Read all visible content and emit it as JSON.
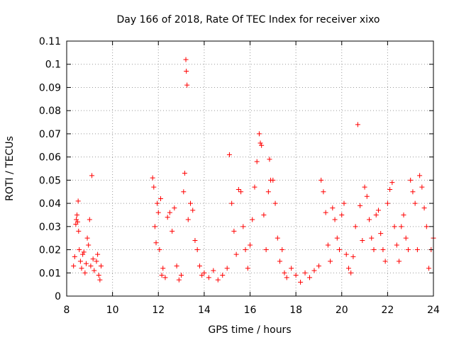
{
  "chart_data": {
    "type": "scatter",
    "title": "Day 166 of 2018, Rate Of TEC Index for receiver xixo",
    "xlabel": "GPS time / hours",
    "ylabel": "ROTI / TECUs",
    "xlim": [
      8,
      24
    ],
    "ylim": [
      0,
      0.11
    ],
    "xticks": [
      "8",
      "10",
      "12",
      "14",
      "16",
      "18",
      "20",
      "22",
      "24"
    ],
    "yticks": [
      "0",
      "0.01",
      "0.02",
      "0.03",
      "0.04",
      "0.05",
      "0.06",
      "0.07",
      "0.08",
      "0.09",
      "0.1",
      "0.11"
    ],
    "grid": "dotted",
    "marker": "+",
    "series": [
      {
        "name": "ROTI",
        "color": "#ff0000",
        "points": [
          [
            8.3,
            0.013
          ],
          [
            8.35,
            0.017
          ],
          [
            8.4,
            0.031
          ],
          [
            8.42,
            0.033
          ],
          [
            8.45,
            0.035
          ],
          [
            8.48,
            0.032
          ],
          [
            8.5,
            0.041
          ],
          [
            8.52,
            0.028
          ],
          [
            8.55,
            0.02
          ],
          [
            8.6,
            0.015
          ],
          [
            8.65,
            0.012
          ],
          [
            8.7,
            0.018
          ],
          [
            8.75,
            0.019
          ],
          [
            8.8,
            0.01
          ],
          [
            8.85,
            0.014
          ],
          [
            8.9,
            0.025
          ],
          [
            8.95,
            0.022
          ],
          [
            9.0,
            0.033
          ],
          [
            9.05,
            0.013
          ],
          [
            9.1,
            0.052
          ],
          [
            9.15,
            0.016
          ],
          [
            9.2,
            0.011
          ],
          [
            9.3,
            0.015
          ],
          [
            9.35,
            0.018
          ],
          [
            9.4,
            0.009
          ],
          [
            9.45,
            0.007
          ],
          [
            9.5,
            0.013
          ],
          [
            11.75,
            0.051
          ],
          [
            11.8,
            0.047
          ],
          [
            11.85,
            0.03
          ],
          [
            11.9,
            0.023
          ],
          [
            11.95,
            0.04
          ],
          [
            12.0,
            0.036
          ],
          [
            12.05,
            0.02
          ],
          [
            12.1,
            0.042
          ],
          [
            12.15,
            0.009
          ],
          [
            12.2,
            0.012
          ],
          [
            12.3,
            0.008
          ],
          [
            12.4,
            0.034
          ],
          [
            12.5,
            0.036
          ],
          [
            12.6,
            0.028
          ],
          [
            12.7,
            0.038
          ],
          [
            12.8,
            0.013
          ],
          [
            12.9,
            0.007
          ],
          [
            13.0,
            0.009
          ],
          [
            13.1,
            0.045
          ],
          [
            13.15,
            0.053
          ],
          [
            13.2,
            0.102
          ],
          [
            13.22,
            0.097
          ],
          [
            13.25,
            0.091
          ],
          [
            13.3,
            0.033
          ],
          [
            13.4,
            0.04
          ],
          [
            13.5,
            0.037
          ],
          [
            13.6,
            0.024
          ],
          [
            13.7,
            0.02
          ],
          [
            13.8,
            0.013
          ],
          [
            13.9,
            0.009
          ],
          [
            14.0,
            0.01
          ],
          [
            14.2,
            0.008
          ],
          [
            14.4,
            0.011
          ],
          [
            14.6,
            0.007
          ],
          [
            14.8,
            0.009
          ],
          [
            15.0,
            0.012
          ],
          [
            15.1,
            0.061
          ],
          [
            15.2,
            0.04
          ],
          [
            15.3,
            0.028
          ],
          [
            15.4,
            0.018
          ],
          [
            15.5,
            0.046
          ],
          [
            15.6,
            0.045
          ],
          [
            15.7,
            0.03
          ],
          [
            15.8,
            0.02
          ],
          [
            15.9,
            0.012
          ],
          [
            16.0,
            0.022
          ],
          [
            16.1,
            0.033
          ],
          [
            16.2,
            0.047
          ],
          [
            16.3,
            0.058
          ],
          [
            16.4,
            0.07
          ],
          [
            16.45,
            0.066
          ],
          [
            16.5,
            0.065
          ],
          [
            16.6,
            0.035
          ],
          [
            16.7,
            0.02
          ],
          [
            16.8,
            0.045
          ],
          [
            16.85,
            0.059
          ],
          [
            16.9,
            0.05
          ],
          [
            17.0,
            0.05
          ],
          [
            17.1,
            0.04
          ],
          [
            17.2,
            0.025
          ],
          [
            17.3,
            0.015
          ],
          [
            17.4,
            0.02
          ],
          [
            17.5,
            0.01
          ],
          [
            17.6,
            0.008
          ],
          [
            17.8,
            0.012
          ],
          [
            18.0,
            0.009
          ],
          [
            18.2,
            0.006
          ],
          [
            18.4,
            0.01
          ],
          [
            18.6,
            0.008
          ],
          [
            18.8,
            0.011
          ],
          [
            19.0,
            0.013
          ],
          [
            19.1,
            0.05
          ],
          [
            19.2,
            0.045
          ],
          [
            19.3,
            0.036
          ],
          [
            19.4,
            0.022
          ],
          [
            19.5,
            0.015
          ],
          [
            19.6,
            0.038
          ],
          [
            19.7,
            0.033
          ],
          [
            19.8,
            0.025
          ],
          [
            19.9,
            0.02
          ],
          [
            20.0,
            0.035
          ],
          [
            20.1,
            0.04
          ],
          [
            20.2,
            0.018
          ],
          [
            20.3,
            0.012
          ],
          [
            20.4,
            0.01
          ],
          [
            20.5,
            0.017
          ],
          [
            20.6,
            0.03
          ],
          [
            20.7,
            0.074
          ],
          [
            20.8,
            0.039
          ],
          [
            20.9,
            0.024
          ],
          [
            21.0,
            0.047
          ],
          [
            21.1,
            0.043
          ],
          [
            21.2,
            0.033
          ],
          [
            21.3,
            0.025
          ],
          [
            21.4,
            0.02
          ],
          [
            21.5,
            0.035
          ],
          [
            21.6,
            0.037
          ],
          [
            21.7,
            0.027
          ],
          [
            21.8,
            0.02
          ],
          [
            21.9,
            0.015
          ],
          [
            22.0,
            0.04
          ],
          [
            22.1,
            0.046
          ],
          [
            22.2,
            0.049
          ],
          [
            22.3,
            0.03
          ],
          [
            22.4,
            0.022
          ],
          [
            22.5,
            0.015
          ],
          [
            22.6,
            0.03
          ],
          [
            22.7,
            0.035
          ],
          [
            22.8,
            0.025
          ],
          [
            22.9,
            0.02
          ],
          [
            23.0,
            0.05
          ],
          [
            23.1,
            0.045
          ],
          [
            23.2,
            0.04
          ],
          [
            23.3,
            0.02
          ],
          [
            23.4,
            0.052
          ],
          [
            23.5,
            0.047
          ],
          [
            23.6,
            0.038
          ],
          [
            23.7,
            0.03
          ],
          [
            23.8,
            0.012
          ],
          [
            23.9,
            0.02
          ],
          [
            24.0,
            0.025
          ]
        ]
      }
    ]
  }
}
